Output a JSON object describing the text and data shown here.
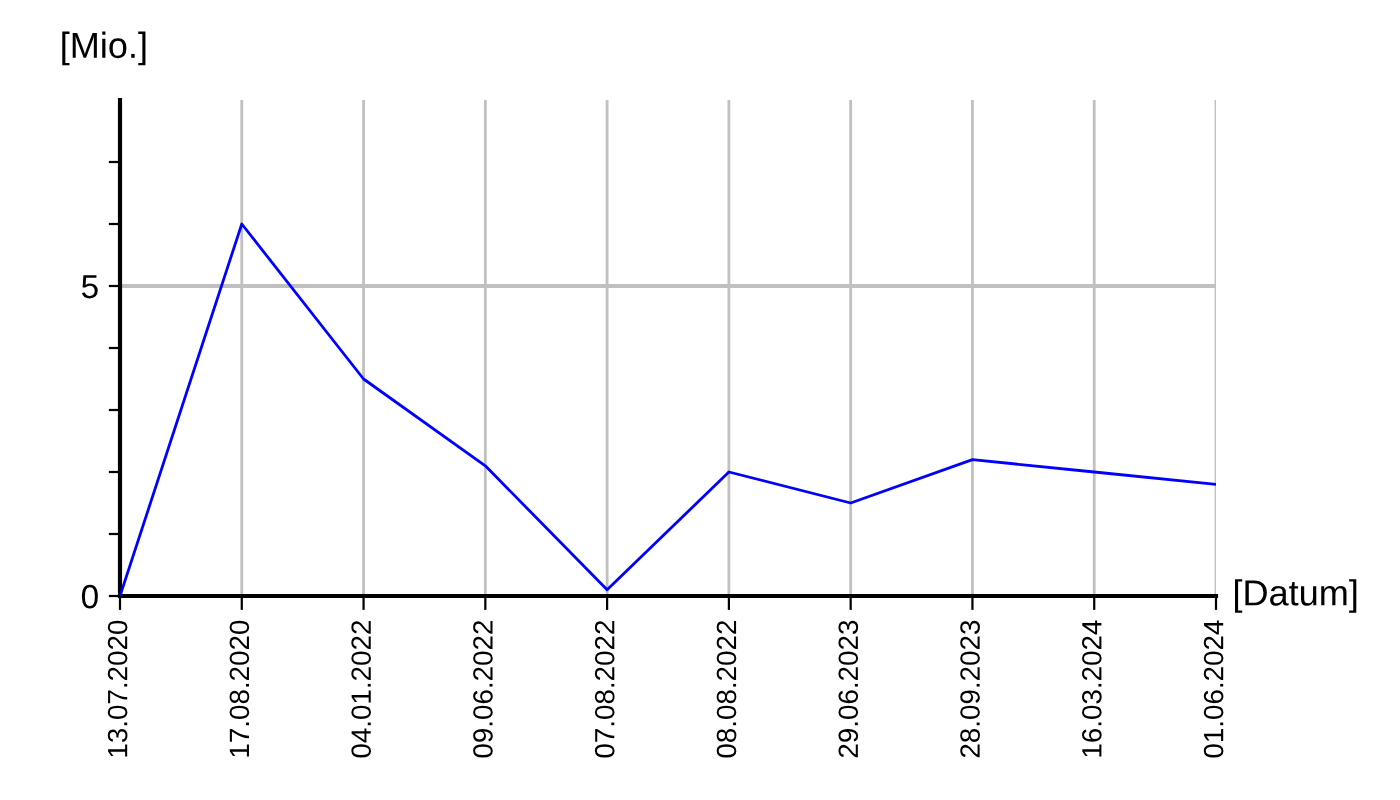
{
  "chart_data": {
    "type": "line",
    "xlabel": "[Datum]",
    "ylabel": "[Mio.]",
    "categories": [
      "13.07.2020",
      "17.08.2020",
      "04.01.2022",
      "09.06.2022",
      "07.08.2022",
      "08.08.2022",
      "29.06.2023",
      "28.09.2023",
      "16.03.2024",
      "01.06.2024"
    ],
    "series": [
      {
        "color": "#0000ff",
        "values": [
          0,
          6.0,
          3.5,
          2.1,
          0.1,
          2.0,
          1.5,
          2.2,
          2.0,
          1.8
        ]
      }
    ],
    "ylim": [
      0,
      8
    ],
    "yticks": [
      0,
      {
        "value": 1,
        "label": null
      },
      {
        "value": 2,
        "label": null
      },
      {
        "value": 3,
        "label": null
      },
      {
        "value": 4,
        "label": null
      },
      5,
      {
        "value": 6,
        "label": null
      },
      {
        "value": 7,
        "label": null
      }
    ],
    "ref_lines": [
      {
        "axis": "y",
        "value": 5,
        "color": "#c0c0c0"
      }
    ],
    "grid": "x",
    "marker": "none",
    "line_style": "solid"
  }
}
